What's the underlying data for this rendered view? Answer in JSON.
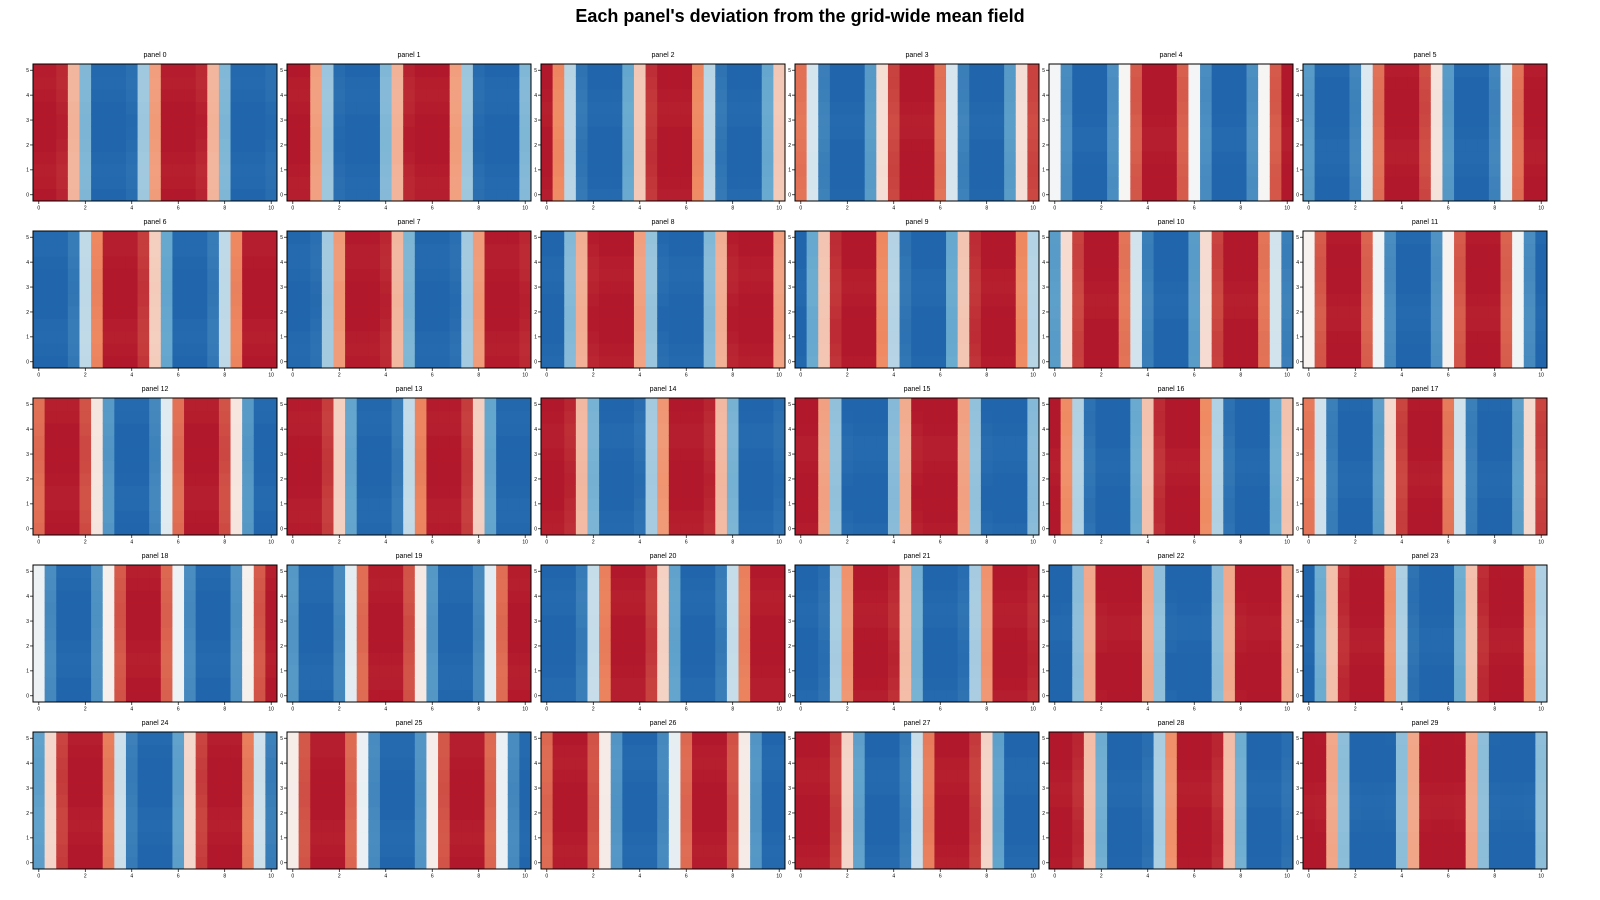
{
  "title": "Each panel's deviation from the grid-wide mean field",
  "colors": {
    "palette": "RdBu_r",
    "deep_blue": "#2166ac",
    "deep_red": "#b2182b",
    "near_zero": "#f7f7f7"
  },
  "chart_data": {
    "type": "heatmap",
    "rows": 5,
    "cols": 6,
    "colormap": "RdBu_r",
    "value_range": [
      -1,
      1
    ],
    "xlim": [
      -0.25,
      10.25
    ],
    "ylim": [
      -0.25,
      5.25
    ],
    "x_ticks": [
      0,
      2,
      4,
      6,
      8,
      10
    ],
    "y_ticks": [
      0,
      1,
      2,
      3,
      4,
      5
    ],
    "column_positions": [
      0,
      0.5,
      1,
      1.5,
      2,
      2.5,
      3,
      3.5,
      4,
      4.5,
      5,
      5.5,
      6,
      6.5,
      7,
      7.5,
      8,
      8.5,
      9,
      9.5,
      10
    ],
    "row_positions": [
      0,
      0.5,
      1,
      1.5,
      2,
      2.5,
      3,
      3.5,
      4,
      4.5,
      5
    ],
    "panel_titles": [
      "panel 0",
      "panel 1",
      "panel 2",
      "panel 3",
      "panel 4",
      "panel 5",
      "panel 6",
      "panel 7",
      "panel 8",
      "panel 9",
      "panel 10",
      "panel 11",
      "panel 12",
      "panel 13",
      "panel 14",
      "panel 15",
      "panel 16",
      "panel 17",
      "panel 18",
      "panel 19",
      "panel 20",
      "panel 21",
      "panel 22",
      "panel 23",
      "panel 24",
      "panel 25",
      "panel 26",
      "panel 27",
      "panel 28",
      "panel 29"
    ],
    "phase": [
      1.35,
      1.8,
      2.25,
      2.7,
      3.15,
      3.6,
      4.05,
      4.5,
      4.95,
      5.4,
      5.85,
      6.3,
      6.75,
      7.2,
      7.65,
      8.1,
      8.55,
      9.0,
      9.45,
      9.9,
      10.35,
      10.8,
      11.25,
      11.7,
      12.15,
      12.6,
      13.05,
      13.5,
      13.95,
      14.4
    ],
    "value_formula": "value = clip(1.4 * sin(1.047 * x + phase), -1, 1), constant along y"
  }
}
